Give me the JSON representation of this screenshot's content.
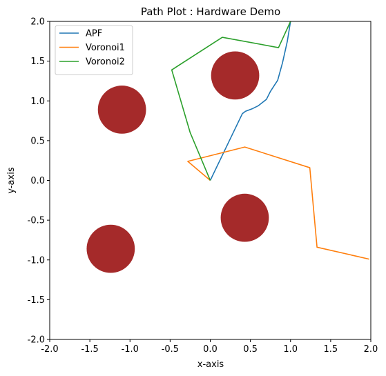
{
  "chart_data": {
    "type": "line",
    "title": "Path Plot : Hardware Demo",
    "xlabel": "x-axis",
    "ylabel": "y-axis",
    "xlim": [
      -2.0,
      2.0
    ],
    "ylim": [
      -2.0,
      2.0
    ],
    "xticks": [
      "-2.0",
      "-1.5",
      "-1.0",
      "-0.5",
      "0.0",
      "0.5",
      "1.0",
      "1.5",
      "2.0"
    ],
    "yticks": [
      "-2.0",
      "-1.5",
      "-1.0",
      "-0.5",
      "0.0",
      "0.5",
      "1.0",
      "1.5",
      "2.0"
    ],
    "grid": false,
    "legend_position": "top-left",
    "series": [
      {
        "name": "APF",
        "color": "#1f77b4",
        "x": [
          0.0,
          0.2,
          0.4,
          0.44,
          0.52,
          0.6,
          0.7,
          0.75,
          0.84,
          0.9,
          0.96,
          1.0
        ],
        "y": [
          0.0,
          0.42,
          0.84,
          0.87,
          0.9,
          0.94,
          1.02,
          1.12,
          1.26,
          1.48,
          1.75,
          2.0
        ]
      },
      {
        "name": "Voronoi1",
        "color": "#ff7f0e",
        "x": [
          0.0,
          -0.28,
          0.43,
          1.24,
          1.33,
          1.98
        ],
        "y": [
          0.0,
          0.24,
          0.42,
          0.16,
          -0.84,
          -0.99
        ]
      },
      {
        "name": "Voronoi2",
        "color": "#2ca02c",
        "x": [
          0.0,
          -0.25,
          -0.48,
          0.15,
          0.85,
          1.0
        ],
        "y": [
          0.0,
          0.6,
          1.39,
          1.8,
          1.67,
          2.0
        ]
      }
    ],
    "obstacles": {
      "color": "#a52a2a",
      "radius": 0.3,
      "centers": [
        {
          "x": 0.31,
          "y": 1.32
        },
        {
          "x": -1.1,
          "y": 0.89
        },
        {
          "x": 0.43,
          "y": -0.47
        },
        {
          "x": -1.24,
          "y": -0.86
        }
      ]
    }
  }
}
